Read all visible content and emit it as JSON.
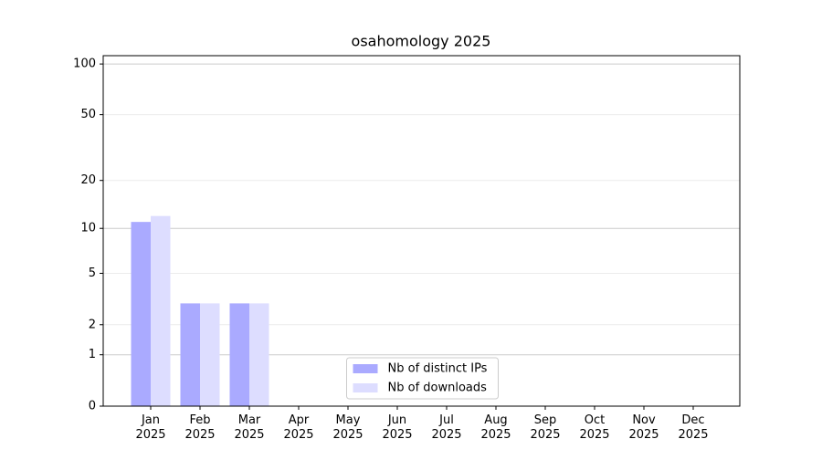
{
  "chart_data": {
    "type": "bar",
    "title": "osahomology 2025",
    "y_scale": "symlog",
    "categories": [
      "Jan\n2025",
      "Feb\n2025",
      "Mar\n2025",
      "Apr\n2025",
      "May\n2025",
      "Jun\n2025",
      "Jul\n2025",
      "Aug\n2025",
      "Sep\n2025",
      "Oct\n2025",
      "Nov\n2025",
      "Dec\n2025"
    ],
    "series": [
      {
        "name": "Nb of distinct IPs",
        "color": "#aaaaff",
        "values": [
          11,
          3,
          3,
          0,
          0,
          0,
          0,
          0,
          0,
          0,
          0,
          0
        ]
      },
      {
        "name": "Nb of downloads",
        "color": "#ddddff",
        "values": [
          12,
          3,
          3,
          0,
          0,
          0,
          0,
          0,
          0,
          0,
          0,
          0
        ]
      }
    ],
    "ylim": [
      0,
      112
    ],
    "yticks": [
      0,
      1,
      2,
      5,
      10,
      20,
      50,
      100
    ],
    "grid": true,
    "legend": "lower center"
  }
}
